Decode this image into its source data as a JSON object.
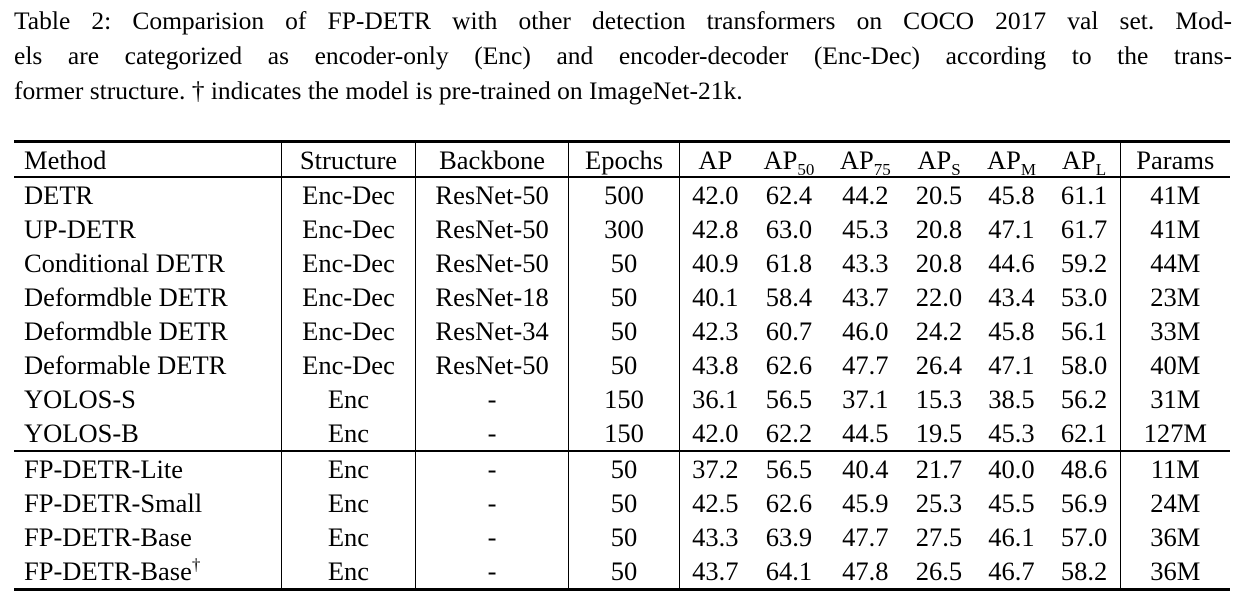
{
  "caption": {
    "line1": "Table 2: Comparision of FP-DETR with other detection transformers on COCO 2017 val set. Mod-",
    "line2": "els are categorized as encoder-only (Enc) and encoder-decoder (Enc-Dec) according to the trans-",
    "line3": "former structure. † indicates the model is pre-trained on ImageNet-21k."
  },
  "table": {
    "headers": {
      "method": "Method",
      "structure": "Structure",
      "backbone": "Backbone",
      "epochs": "Epochs",
      "ap": "AP",
      "ap50_base": "AP",
      "ap50_sub": "50",
      "ap75_base": "AP",
      "ap75_sub": "75",
      "aps_base": "AP",
      "aps_sub": "S",
      "apm_base": "AP",
      "apm_sub": "M",
      "apl_base": "AP",
      "apl_sub": "L",
      "params": "Params"
    },
    "group1": [
      {
        "method": "DETR",
        "structure": "Enc-Dec",
        "backbone": "ResNet-50",
        "epochs": "500",
        "ap": "42.0",
        "ap50": "62.4",
        "ap75": "44.2",
        "aps": "20.5",
        "apm": "45.8",
        "apl": "61.1",
        "params": "41M"
      },
      {
        "method": "UP-DETR",
        "structure": "Enc-Dec",
        "backbone": "ResNet-50",
        "epochs": "300",
        "ap": "42.8",
        "ap50": "63.0",
        "ap75": "45.3",
        "aps": "20.8",
        "apm": "47.1",
        "apl": "61.7",
        "params": "41M"
      },
      {
        "method": "Conditional DETR",
        "structure": "Enc-Dec",
        "backbone": "ResNet-50",
        "epochs": "50",
        "ap": "40.9",
        "ap50": "61.8",
        "ap75": "43.3",
        "aps": "20.8",
        "apm": "44.6",
        "apl": "59.2",
        "params": "44M"
      },
      {
        "method": "Deformdble DETR",
        "structure": "Enc-Dec",
        "backbone": "ResNet-18",
        "epochs": "50",
        "ap": "40.1",
        "ap50": "58.4",
        "ap75": "43.7",
        "aps": "22.0",
        "apm": "43.4",
        "apl": "53.0",
        "params": "23M"
      },
      {
        "method": "Deformdble DETR",
        "structure": "Enc-Dec",
        "backbone": "ResNet-34",
        "epochs": "50",
        "ap": "42.3",
        "ap50": "60.7",
        "ap75": "46.0",
        "aps": "24.2",
        "apm": "45.8",
        "apl": "56.1",
        "params": "33M"
      },
      {
        "method": "Deformable DETR",
        "structure": "Enc-Dec",
        "backbone": "ResNet-50",
        "epochs": "50",
        "ap": "43.8",
        "ap50": "62.6",
        "ap75": "47.7",
        "aps": "26.4",
        "apm": "47.1",
        "apl": "58.0",
        "params": "40M"
      },
      {
        "method": "YOLOS-S",
        "structure": "Enc",
        "backbone": "-",
        "epochs": "150",
        "ap": "36.1",
        "ap50": "56.5",
        "ap75": "37.1",
        "aps": "15.3",
        "apm": "38.5",
        "apl": "56.2",
        "params": "31M"
      },
      {
        "method": "YOLOS-B",
        "structure": "Enc",
        "backbone": "-",
        "epochs": "150",
        "ap": "42.0",
        "ap50": "62.2",
        "ap75": "44.5",
        "aps": "19.5",
        "apm": "45.3",
        "apl": "62.1",
        "params": "127M"
      }
    ],
    "group2": [
      {
        "method": "FP-DETR-Lite",
        "mark": "",
        "structure": "Enc",
        "backbone": "-",
        "epochs": "50",
        "ap": "37.2",
        "ap50": "56.5",
        "ap75": "40.4",
        "aps": "21.7",
        "apm": "40.0",
        "apl": "48.6",
        "params": "11M"
      },
      {
        "method": "FP-DETR-Small",
        "mark": "",
        "structure": "Enc",
        "backbone": "-",
        "epochs": "50",
        "ap": "42.5",
        "ap50": "62.6",
        "ap75": "45.9",
        "aps": "25.3",
        "apm": "45.5",
        "apl": "56.9",
        "params": "24M"
      },
      {
        "method": "FP-DETR-Base",
        "mark": "",
        "structure": "Enc",
        "backbone": "-",
        "epochs": "50",
        "ap": "43.3",
        "ap50": "63.9",
        "ap75": "47.7",
        "aps": "27.5",
        "apm": "46.1",
        "apl": "57.0",
        "params": "36M"
      },
      {
        "method": "FP-DETR-Base",
        "mark": "†",
        "structure": "Enc",
        "backbone": "-",
        "epochs": "50",
        "ap": "43.7",
        "ap50": "64.1",
        "ap75": "47.8",
        "aps": "26.5",
        "apm": "46.7",
        "apl": "58.2",
        "params": "36M"
      }
    ]
  }
}
